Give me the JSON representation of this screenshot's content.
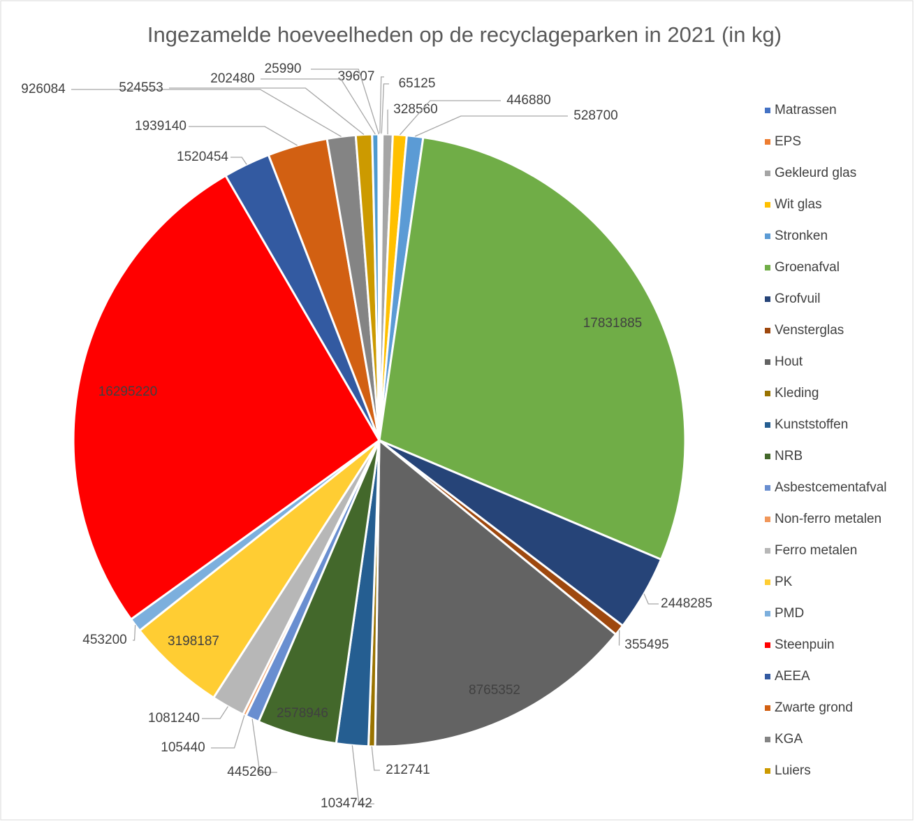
{
  "chart_data": {
    "type": "pie",
    "title": "Ingezamelde hoeveelheden op de recyclageparken in 2021 (in kg)",
    "categories": [
      "Matrassen",
      "EPS",
      "Gekleurd glas",
      "Wit glas",
      "Stronken",
      "Groenafval",
      "Grofvuil",
      "Vensterglas",
      "Hout",
      "Kleding",
      "Kunststoffen",
      "NRB",
      "Asbestcementafval",
      "Non-ferro metalen",
      "Ferro metalen",
      "PK",
      "PMD",
      "Steenpuin",
      "AEEA",
      "Zwarte grond",
      "KGA",
      "Luiers",
      null,
      null
    ],
    "values": [
      39607,
      65125,
      328560,
      446880,
      528700,
      17831885,
      2448285,
      355495,
      8765352,
      212741,
      1034742,
      2578946,
      445260,
      105440,
      1081240,
      3198187,
      453200,
      16295220,
      1520454,
      1939140,
      926084,
      524553,
      202480,
      25990
    ],
    "colors": [
      "#4472C4",
      "#ED7D31",
      "#A5A5A5",
      "#FFC000",
      "#5B9BD5",
      "#70AD47",
      "#264478",
      "#9E480E",
      "#636363",
      "#997300",
      "#255E91",
      "#43682B",
      "#698ED0",
      "#F1975A",
      "#B7B7B7",
      "#FFCD33",
      "#7CAFDD",
      "#FF0000",
      "#335AA1",
      "#D26012",
      "#848484",
      "#CC9A00",
      "#4F9ACF",
      "#8CC168"
    ],
    "legend": "right"
  }
}
